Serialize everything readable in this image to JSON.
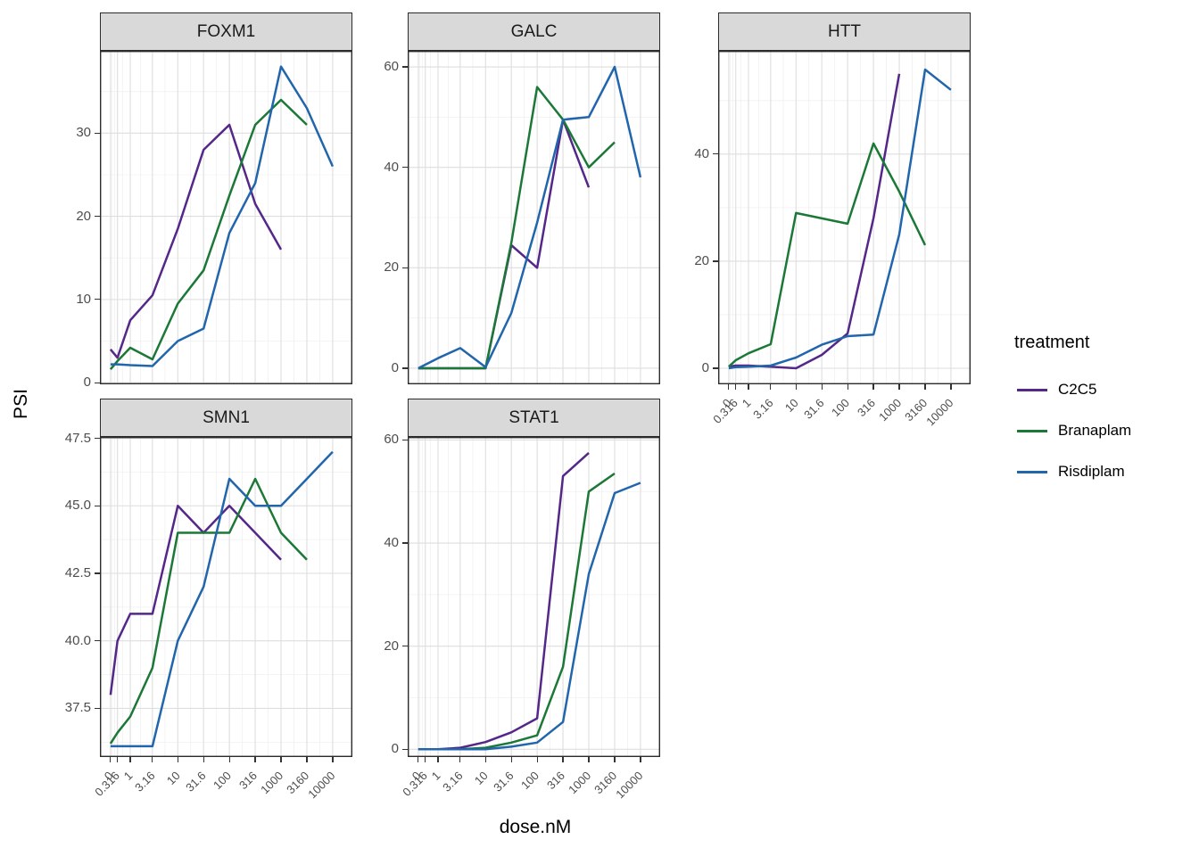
{
  "chart_data": {
    "type": "line",
    "description": "Faceted dose-response line chart (ggplot style), PSI vs dose.nM per target gene",
    "xlabel": "dose.nM",
    "ylabel": "PSI",
    "x_scale": "pseudo_log",
    "x": [
      0,
      0.316,
      1,
      3.16,
      10,
      31.6,
      100,
      316,
      1000,
      3160,
      10000
    ],
    "x_tick_labels": [
      "0",
      "0.316",
      "1",
      "3.16",
      "10",
      "31.6",
      "100",
      "316",
      "1000",
      "3160",
      "10000"
    ],
    "legend": {
      "title": "treatment",
      "entries": [
        "C2C5",
        "Branaplam",
        "Risdiplam"
      ]
    },
    "colors": {
      "C2C5": "#542788",
      "Branaplam": "#1B7837",
      "Risdiplam": "#2166AC"
    },
    "panels": [
      {
        "title": "FOXM1",
        "y_ticks": [
          0,
          10,
          20,
          30
        ],
        "y_tick_labels": [
          "0",
          "10",
          "20",
          "30"
        ],
        "y_domain": [
          -0.2,
          39.9
        ],
        "series": {
          "C2C5": [
            4,
            3,
            7.5,
            10.5,
            18.5,
            28,
            31,
            21.5,
            16,
            null,
            null
          ],
          "Branaplam": [
            1.6,
            2.6,
            4.2,
            2.8,
            9.5,
            13.5,
            22.5,
            31,
            34,
            31,
            null
          ],
          "Risdiplam": [
            2.2,
            2.2,
            2.1,
            2,
            5,
            6.5,
            18,
            24,
            38,
            33,
            26
          ]
        }
      },
      {
        "title": "GALC",
        "y_ticks": [
          0,
          20,
          40,
          60
        ],
        "y_tick_labels": [
          "0",
          "20",
          "40",
          "60"
        ],
        "y_domain": [
          -3.2,
          63.2
        ],
        "series": {
          "C2C5": [
            0,
            0,
            0,
            0,
            0,
            24.5,
            20,
            49.5,
            36,
            null,
            null
          ],
          "Branaplam": [
            0,
            0,
            0,
            0,
            0,
            25,
            56,
            49.5,
            40,
            45,
            null
          ],
          "Risdiplam": [
            0,
            0.7,
            2,
            4,
            0.2,
            11,
            29,
            49.5,
            50,
            60,
            38
          ]
        }
      },
      {
        "title": "HTT",
        "y_ticks": [
          0,
          20,
          40
        ],
        "y_tick_labels": [
          "0",
          "20",
          "40"
        ],
        "y_domain": [
          -3,
          59.3
        ],
        "series": {
          "C2C5": [
            0.3,
            0.5,
            0.5,
            0.3,
            0,
            2.5,
            6.5,
            28,
            55,
            null,
            null
          ],
          "Branaplam": [
            0.3,
            1.5,
            2.8,
            4.5,
            29,
            28,
            27,
            42,
            33,
            23,
            null
          ],
          "Risdiplam": [
            0,
            0.2,
            0.3,
            0.5,
            2,
            4.4,
            6,
            6.3,
            25,
            55.8,
            52
          ]
        }
      },
      {
        "title": "SMN1",
        "y_ticks": [
          37.5,
          40.0,
          42.5,
          45.0,
          47.5
        ],
        "y_tick_labels": [
          "37.5",
          "40.0",
          "42.5",
          "45.0",
          "47.5"
        ],
        "y_domain": [
          35.7,
          47.55
        ],
        "series": {
          "C2C5": [
            38,
            40,
            41,
            41,
            45,
            44,
            45,
            44,
            43,
            null,
            null
          ],
          "Branaplam": [
            36.2,
            36.6,
            37.2,
            39,
            44,
            44,
            44,
            46,
            44,
            43,
            null
          ],
          "Risdiplam": [
            36.1,
            36.1,
            36.1,
            36.1,
            40,
            42,
            46,
            45,
            45,
            46,
            47
          ]
        }
      },
      {
        "title": "STAT1",
        "y_ticks": [
          0,
          20,
          40,
          60
        ],
        "y_tick_labels": [
          "0",
          "20",
          "40",
          "60"
        ],
        "y_domain": [
          -1.5,
          60.6
        ],
        "series": {
          "C2C5": [
            0,
            0,
            0,
            0.3,
            1.4,
            3.3,
            6,
            53,
            57.5,
            null,
            null
          ],
          "Branaplam": [
            0,
            0,
            0,
            0,
            0.3,
            1.3,
            2.7,
            16,
            50,
            53.5,
            null
          ],
          "Risdiplam": [
            0,
            0,
            0,
            0,
            0,
            0.5,
            1.3,
            5.3,
            34,
            49.7,
            51.7
          ]
        }
      }
    ]
  }
}
